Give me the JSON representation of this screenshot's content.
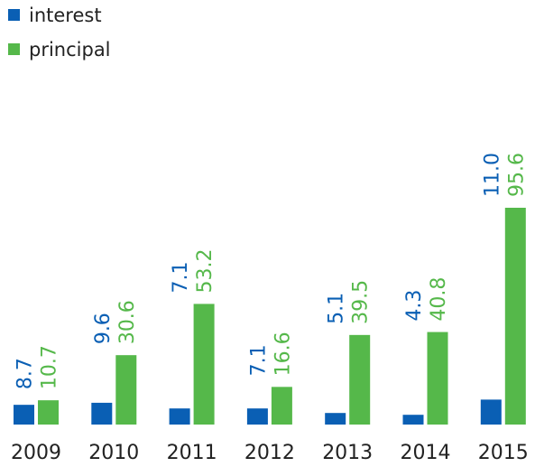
{
  "chart_data": {
    "type": "bar",
    "categories": [
      "2009",
      "2010",
      "2011",
      "2012",
      "2013",
      "2014",
      "2015"
    ],
    "series": [
      {
        "name": "interest",
        "color": "#0a5fb4",
        "values": [
          8.7,
          9.6,
          7.1,
          7.1,
          5.1,
          4.3,
          11.0
        ],
        "value_labels": [
          "8.7",
          "9.6",
          "7.1",
          "7.1",
          "5.1",
          "4.3",
          "11.0"
        ]
      },
      {
        "name": "principal",
        "color": "#55b84a",
        "values": [
          10.7,
          30.6,
          53.2,
          16.6,
          39.5,
          40.8,
          95.6
        ],
        "value_labels": [
          "10.7",
          "30.6",
          "53.2",
          "16.6",
          "39.5",
          "40.8",
          "95.6"
        ]
      }
    ]
  }
}
